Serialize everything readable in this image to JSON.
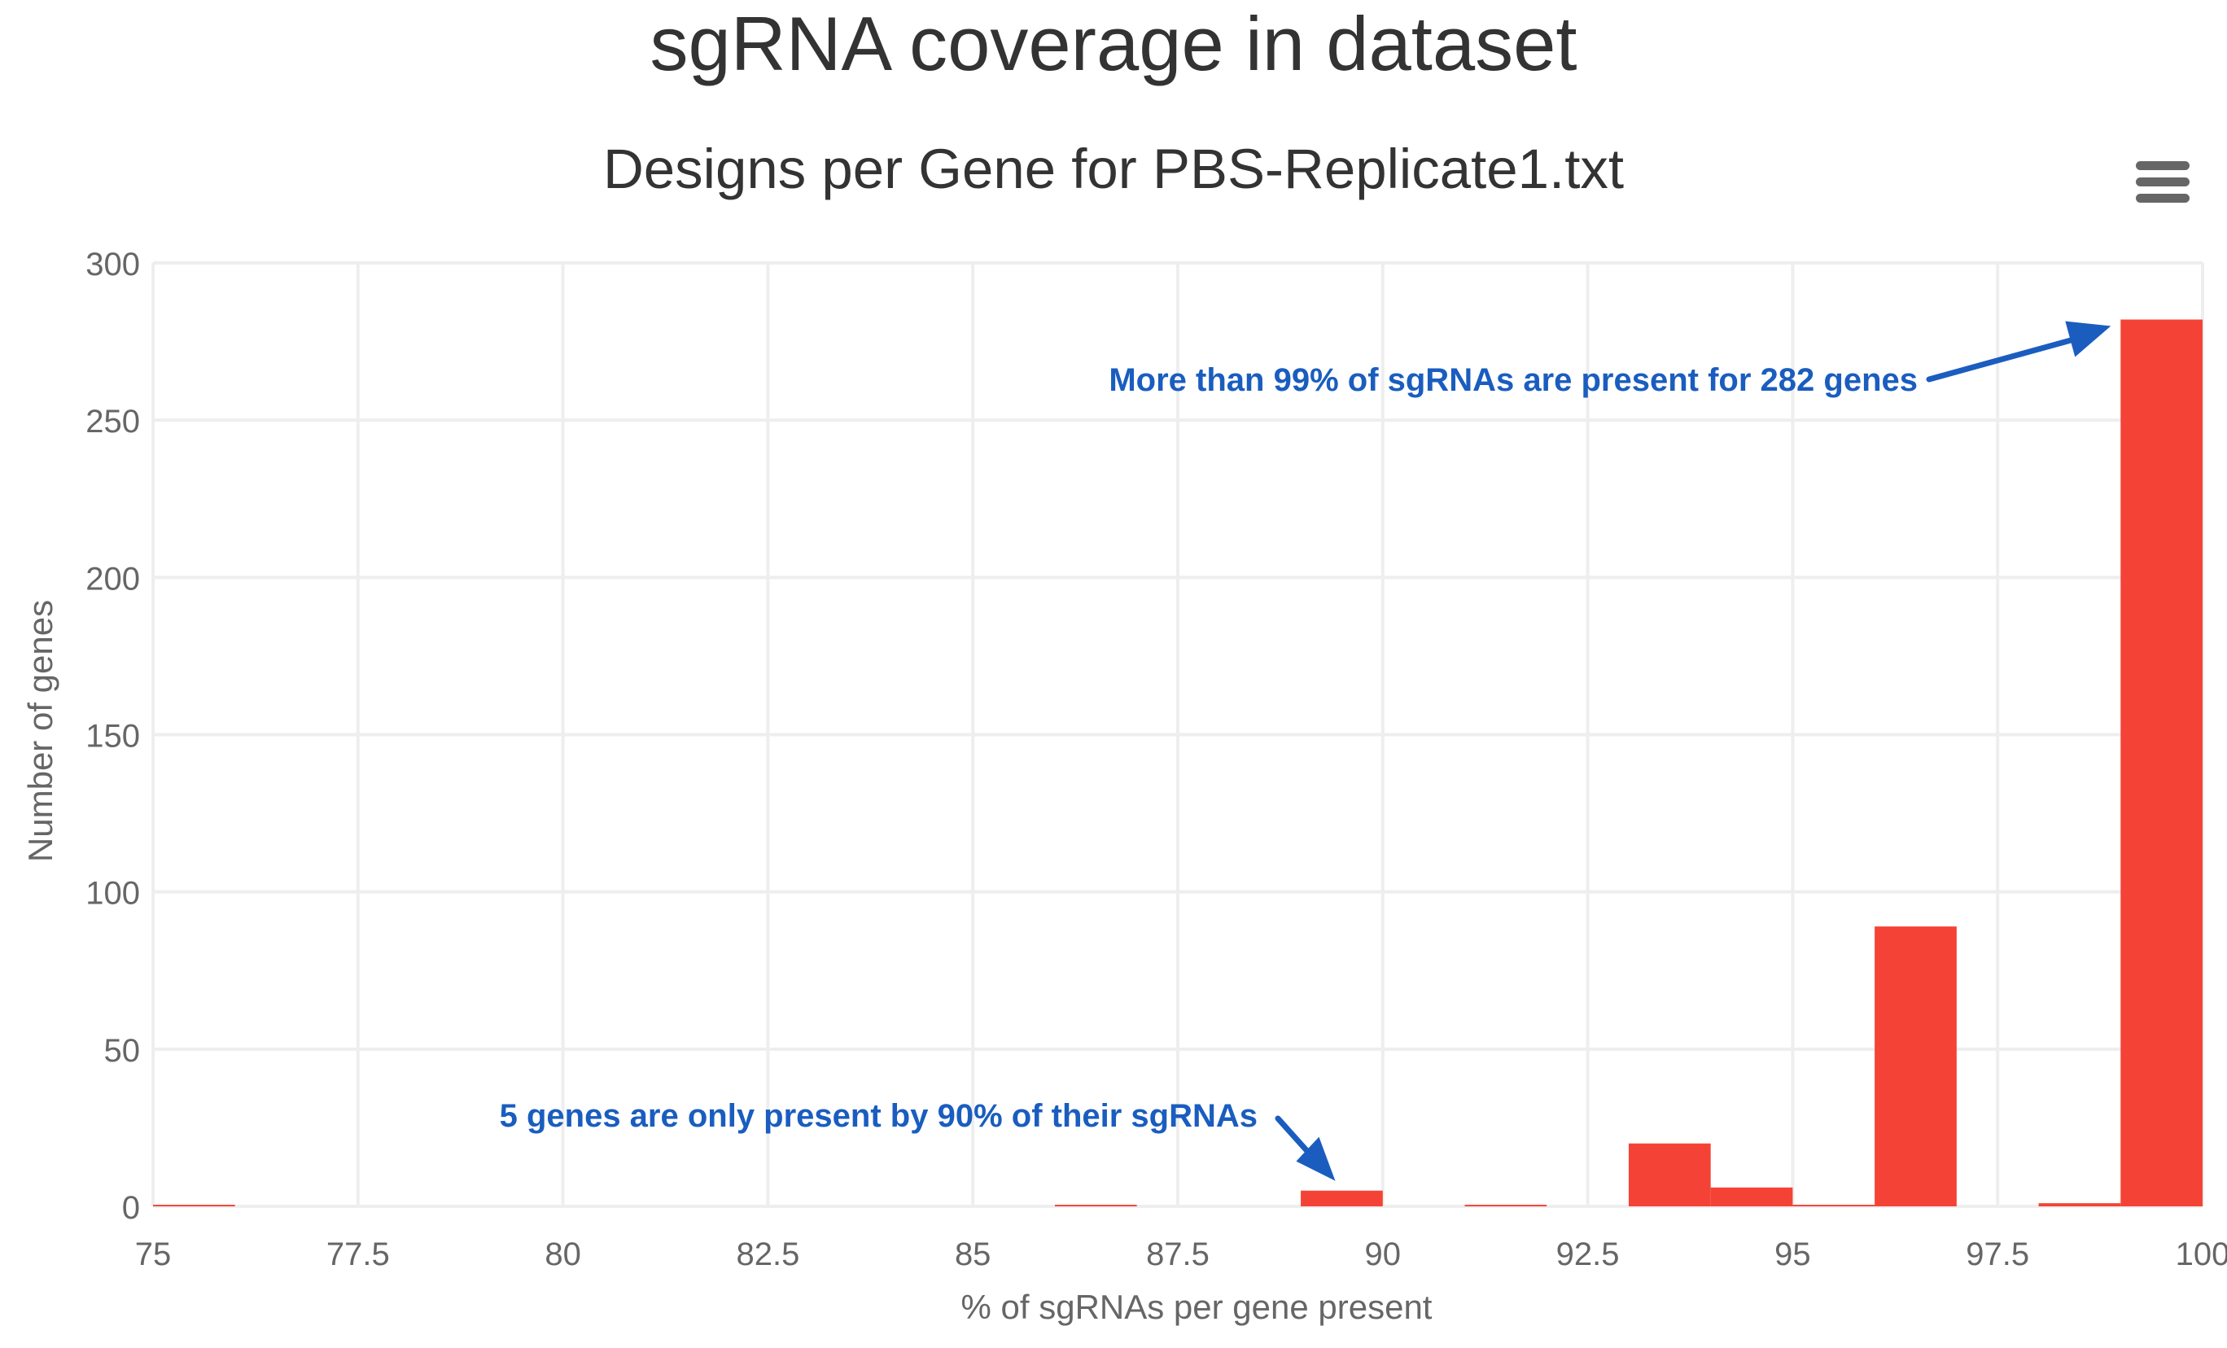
{
  "page": {
    "title": "sgRNA coverage in dataset"
  },
  "chart_data": {
    "type": "bar",
    "title": "Designs per Gene for PBS-Replicate1.txt",
    "xlabel": "% of sgRNAs per gene present",
    "ylabel": "Number of genes",
    "xlim": [
      75,
      100
    ],
    "ylim": [
      0,
      300
    ],
    "x_ticks": [
      "75",
      "77.5",
      "80",
      "82.5",
      "85",
      "87.5",
      "90",
      "92.5",
      "95",
      "97.5",
      "100"
    ],
    "y_ticks": [
      "0",
      "50",
      "100",
      "150",
      "200",
      "250",
      "300"
    ],
    "bars": [
      {
        "x0": 75,
        "x1": 76,
        "value": 0.5
      },
      {
        "x0": 86,
        "x1": 87,
        "value": 0.5
      },
      {
        "x0": 89,
        "x1": 90,
        "value": 5
      },
      {
        "x0": 91,
        "x1": 92,
        "value": 0.5
      },
      {
        "x0": 93,
        "x1": 94,
        "value": 20
      },
      {
        "x0": 94,
        "x1": 95,
        "value": 6
      },
      {
        "x0": 95,
        "x1": 96,
        "value": 0.5
      },
      {
        "x0": 96,
        "x1": 97,
        "value": 89
      },
      {
        "x0": 98,
        "x1": 99,
        "value": 1
      },
      {
        "x0": 99,
        "x1": 100,
        "value": 282
      }
    ],
    "bar_color": "#F44336",
    "grid": true,
    "grid_color": "#EEEEEE",
    "annotations": [
      {
        "text": "More than 99% of sgRNAs are present for 282 genes",
        "x": 99.5,
        "y": 282,
        "color": "#1A5DBF"
      },
      {
        "text": "5 genes are only present by 90% of their sgRNAs",
        "x": 89.5,
        "y": 5,
        "color": "#1A5DBF"
      }
    ]
  },
  "menu": {
    "icon": "hamburger-menu-icon"
  }
}
